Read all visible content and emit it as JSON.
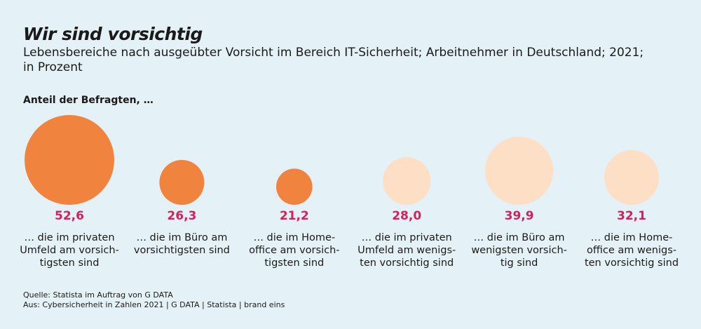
{
  "title": "Wir sind vorsichtig",
  "subtitle_line1": "Lebensbereiche nach ausgeübter Vorsicht im Bereich IT-Sicherheit; Arbeitnehmer in Deutschland; 2021;",
  "subtitle_line2": "in Prozent",
  "section_label": "Anteil der Befragten, …",
  "source": "Quelle: Statista im Auftrag von G DATA",
  "origin": "Aus: Cybersicherheit in Zahlen 2021 | G DATA | Statista | brand eins",
  "colors": {
    "background": "#e4f1f6",
    "most_careful": "#f0833d",
    "least_careful": "#fddfc6",
    "value_text": "#d4205c"
  },
  "chart_data": {
    "type": "bubble",
    "title": "Wir sind vorsichtig",
    "unit": "in Prozent",
    "categories": [
      [
        "… die im privaten",
        "Umfeld am vorsich-",
        "tigsten sind"
      ],
      [
        "… die im Büro am",
        "vorsichtigsten sind"
      ],
      [
        "… die im Home-",
        "office am vorsich-",
        "tigsten sind"
      ],
      [
        "… die im privaten",
        "Umfeld am wenigs-",
        "ten vorsichtig sind"
      ],
      [
        "… die im Büro am",
        "wenigsten vorsich-",
        "tig sind"
      ],
      [
        "… die im Home-",
        "office am wenigs-",
        "ten vorsichtig sind"
      ]
    ],
    "values": [
      52.6,
      26.3,
      21.2,
      28.0,
      39.9,
      32.1
    ],
    "value_labels": [
      "52,6",
      "26,3",
      "21,2",
      "28,0",
      "39,9",
      "32,1"
    ],
    "groups": [
      "most_careful",
      "most_careful",
      "most_careful",
      "least_careful",
      "least_careful",
      "least_careful"
    ]
  }
}
